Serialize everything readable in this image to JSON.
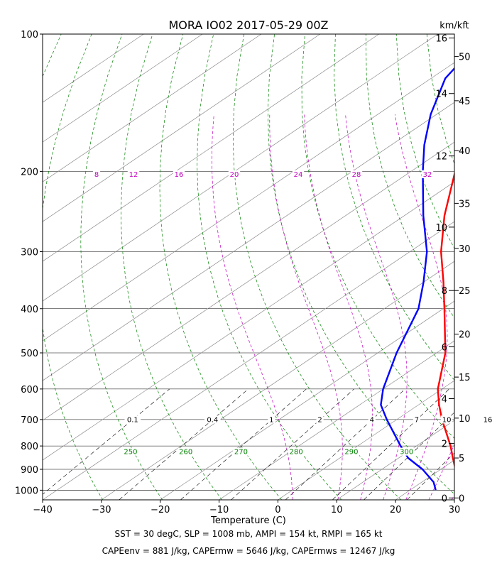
{
  "chart_data": {
    "type": "skew-t",
    "title": "MORA IO02 2017-05-29 00Z",
    "xlabel": "Temperature (C)",
    "height_unit_label": "km/kft",
    "xlim": [
      -40,
      30
    ],
    "ylim_hpa": [
      1050,
      100
    ],
    "x_ticks": [
      "−40",
      "−30",
      "−20",
      "−10",
      "0",
      "10",
      "20",
      "30"
    ],
    "x_tick_values": [
      -40,
      -30,
      -20,
      -10,
      0,
      10,
      20,
      30
    ],
    "pressure_ticks": [
      "100",
      "200",
      "300",
      "400",
      "500",
      "600",
      "700",
      "800",
      "900",
      "1000"
    ],
    "pressure_tick_values": [
      100,
      200,
      300,
      400,
      500,
      600,
      700,
      800,
      900,
      1000
    ],
    "km_ticks": [
      "0",
      "2",
      "4",
      "6",
      "8",
      "10",
      "12",
      "14",
      "16"
    ],
    "km_tick_pressures": [
      1040,
      790,
      630,
      485,
      365,
      265,
      185,
      135,
      102
    ],
    "kft_ticks": [
      "0",
      "5",
      "10",
      "15",
      "20",
      "25",
      "30",
      "35",
      "40",
      "45",
      "50"
    ],
    "kft_tick_pressures": [
      1040,
      850,
      695,
      565,
      455,
      365,
      295,
      235,
      180,
      140,
      112
    ],
    "mixing_ratio_labels": [
      "0.1",
      "0.4",
      "1",
      "2",
      "4",
      "7",
      "10",
      "16"
    ],
    "mixing_ratio_values": [
      0.1,
      0.4,
      1,
      2,
      4,
      7,
      10,
      16
    ],
    "dry_adiabat_labels": [
      "250",
      "260",
      "270",
      "280",
      "290",
      "300"
    ],
    "dry_adiabat_values": [
      250,
      260,
      270,
      280,
      290,
      300
    ],
    "moist_adiabat_labels": [
      "8",
      "12",
      "16",
      "20",
      "24",
      "28",
      "32"
    ],
    "moist_adiabat_values": [
      8,
      12,
      16,
      20,
      24,
      28,
      32
    ],
    "series": [
      {
        "color": "#ff0000",
        "pressure": [
          1000,
          980,
          900,
          850,
          800,
          700,
          650,
          600,
          500,
          400,
          350,
          300,
          250,
          200,
          175,
          150,
          125,
          110,
          100
        ],
        "temperature": [
          28,
          27.5,
          22.5,
          19.2,
          15.8,
          7.7,
          3.5,
          -0.7,
          -8.5,
          -19.8,
          -26.6,
          -34.7,
          -43.2,
          -52.5,
          -58.3,
          -64.6,
          -71.0,
          -73.3,
          -74.7
        ]
      },
      {
        "color": "#0000ff",
        "pressure": [
          1000,
          960,
          900,
          850,
          800,
          700,
          650,
          600,
          500,
          400,
          350,
          300,
          250,
          200,
          175,
          150,
          125,
          110,
          100
        ],
        "temperature": [
          24.4,
          22.0,
          16.9,
          11.6,
          7.3,
          -1.7,
          -6.4,
          -10.0,
          -16.8,
          -24.2,
          -30.0,
          -37.1,
          -46.8,
          -58.0,
          -64.4,
          -71.0,
          -77.6,
          -80.0,
          -81.0
        ]
      }
    ],
    "footer_lines": [
      "SST = 30 degC, SLP = 1008 mb, AMPI = 154 kt, RMPI = 165 kt",
      "CAPEenv = 881 J/kg, CAPErmw = 5646 J/kg, CAPErmws = 12467 J/kg"
    ],
    "colors": {
      "dry_adiabat": "#008000",
      "moist_adiabat": "#c000c0",
      "mixing_ratio": "#000000",
      "isotherm": "#8c8c8c",
      "isobar": "#000000"
    }
  }
}
